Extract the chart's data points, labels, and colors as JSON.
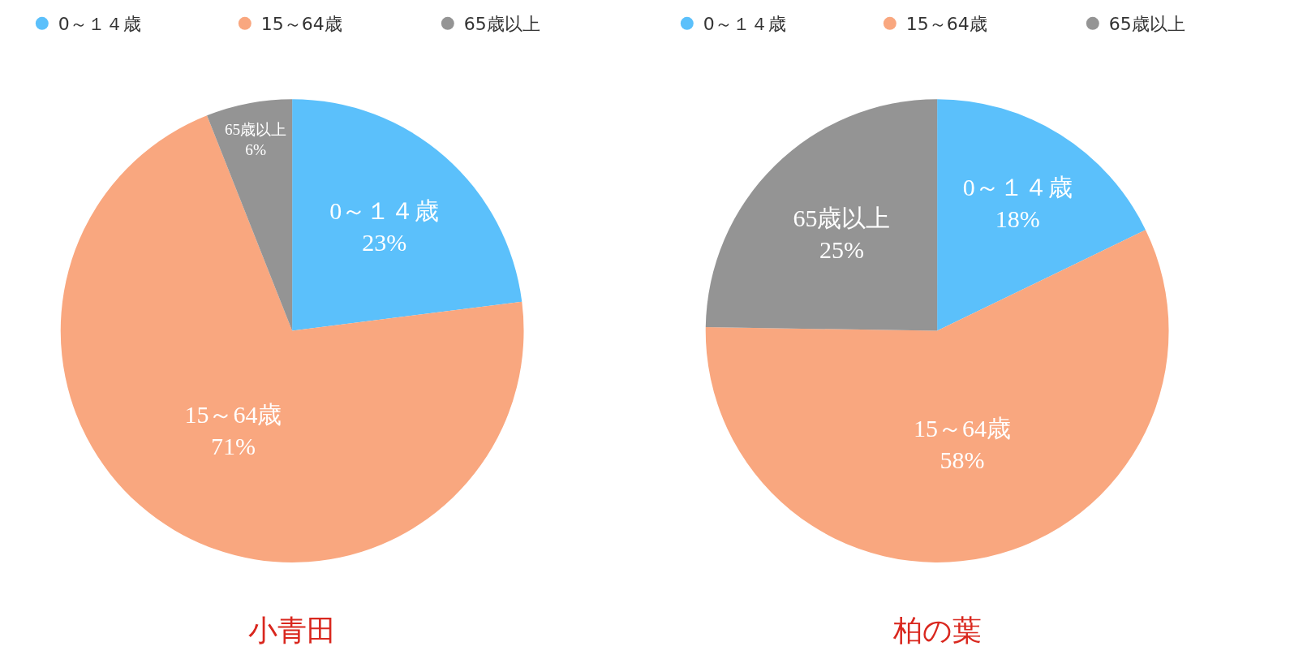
{
  "chart_data": [
    {
      "type": "pie",
      "title": "小青田",
      "categories": [
        "0～１４歳",
        "15～64歳",
        "65歳以上"
      ],
      "values": [
        23,
        71,
        6
      ],
      "colors": [
        "#5bc0fb",
        "#f9a77f",
        "#949494"
      ],
      "value_labels": [
        "23%",
        "71%",
        "6%"
      ],
      "legend": "top"
    },
    {
      "type": "pie",
      "title": "柏の葉",
      "categories": [
        "0～１４歳",
        "15～64歳",
        "65歳以上"
      ],
      "values": [
        18,
        58,
        25
      ],
      "colors": [
        "#5bc0fb",
        "#f9a77f",
        "#949494"
      ],
      "value_labels": [
        "18%",
        "58%",
        "25%"
      ],
      "legend": "top"
    }
  ]
}
